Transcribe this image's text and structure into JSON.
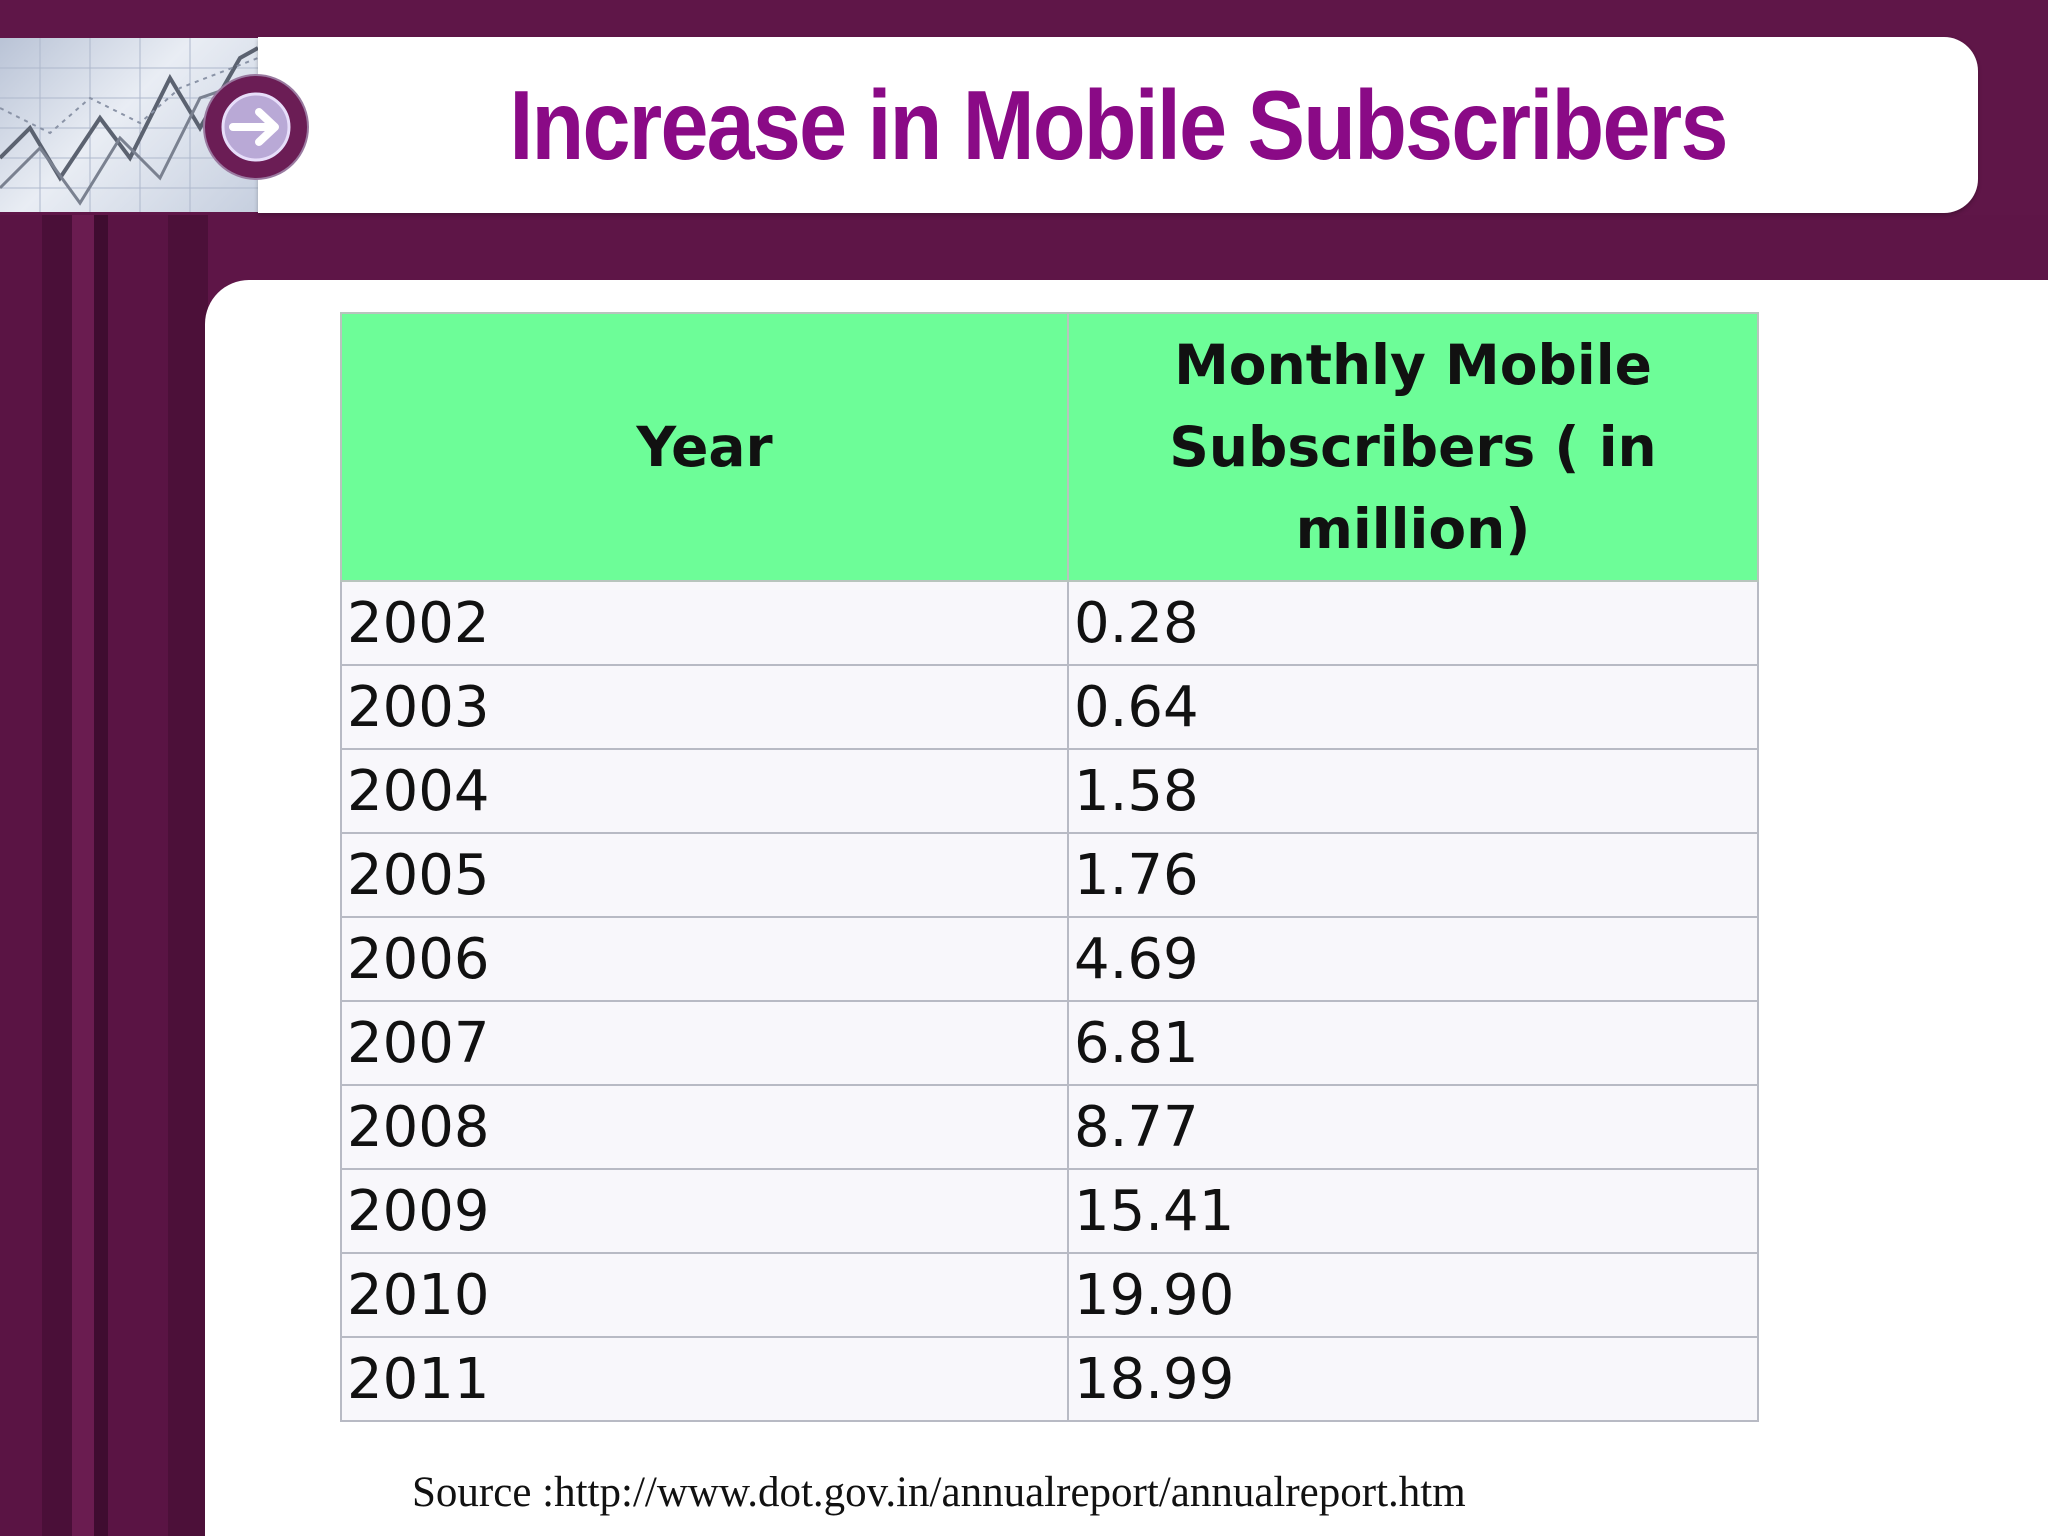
{
  "slide": {
    "title": "Increase in Mobile Subscribers",
    "source": "Source :http://www.dot.gov.in/annualreport/annualreport.htm"
  },
  "colors": {
    "background": "#5e1547",
    "title": "#8a0a86",
    "header_fill": "#6dfd98",
    "row_fill": "#f8f7fb"
  },
  "icons": [
    "arrow-right-icon",
    "line-graph-icon"
  ],
  "table": {
    "headers": [
      "Year",
      "Monthly  Mobile Subscribers ( in million)"
    ],
    "rows": [
      [
        "2002",
        "0.28"
      ],
      [
        "2003",
        "0.64"
      ],
      [
        "2004",
        "1.58"
      ],
      [
        "2005",
        "1.76"
      ],
      [
        "2006",
        "4.69"
      ],
      [
        "2007",
        "6.81"
      ],
      [
        "2008",
        "8.77"
      ],
      [
        "2009",
        "15.41"
      ],
      [
        "2010",
        "19.90"
      ],
      [
        "2011",
        "18.99"
      ]
    ]
  }
}
